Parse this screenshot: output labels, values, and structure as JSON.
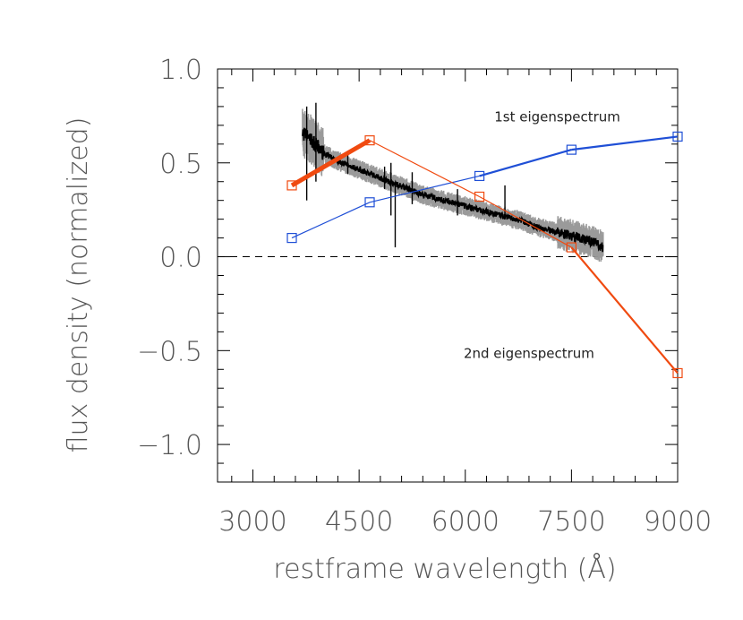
{
  "chart_data": {
    "type": "line",
    "title": "",
    "xlabel": "restframe wavelength (Å)",
    "ylabel": "flux density (normalized)",
    "xlim": [
      2500,
      9000
    ],
    "ylim": [
      -1.2,
      1.0
    ],
    "x_ticks": [
      3000,
      4500,
      6000,
      7500,
      9000
    ],
    "x_tick_labels": [
      "3000",
      "4500",
      "6000",
      "7500",
      "9000"
    ],
    "y_ticks": [
      -1.0,
      -0.5,
      0.0,
      0.5,
      1.0
    ],
    "y_tick_labels": [
      "−1.0",
      "−0.5",
      "0.0",
      "0.5",
      "1.0"
    ],
    "zero_line": {
      "y": 0,
      "style": "dashed"
    },
    "grid": false,
    "annotations": [
      {
        "text": "1st eigenspectrum",
        "x": 7300,
        "y": 0.72
      },
      {
        "text": "2nd eigenspectrum",
        "x": 6900,
        "y": -0.54
      }
    ],
    "series": [
      {
        "color": "#1f4fd6",
        "marker": "square",
        "x": [
          3550,
          4650,
          6200,
          7500,
          9000
        ],
        "y": [
          0.1,
          0.29,
          0.43,
          0.57,
          0.64
        ]
      },
      {
        "color": "#f04a10",
        "marker": "square",
        "x": [
          3550,
          4650,
          6200,
          7500,
          9000
        ],
        "y": [
          0.38,
          0.62,
          0.32,
          0.05,
          -0.62
        ]
      },
      {
        "color": "#000000",
        "band_color": "#9a9a9a",
        "style": "noisy-spectrum",
        "x": [
          3700,
          3800,
          3900,
          4000,
          4200,
          4400,
          4600,
          4800,
          5000,
          5200,
          5400,
          5600,
          5800,
          6000,
          6200,
          6400,
          6600,
          6800,
          7000,
          7200,
          7400,
          7600,
          7800,
          7950
        ],
        "y": [
          0.66,
          0.63,
          0.59,
          0.55,
          0.51,
          0.48,
          0.45,
          0.42,
          0.39,
          0.36,
          0.33,
          0.31,
          0.29,
          0.27,
          0.25,
          0.23,
          0.21,
          0.19,
          0.16,
          0.14,
          0.12,
          0.1,
          0.08,
          0.05
        ]
      }
    ]
  }
}
